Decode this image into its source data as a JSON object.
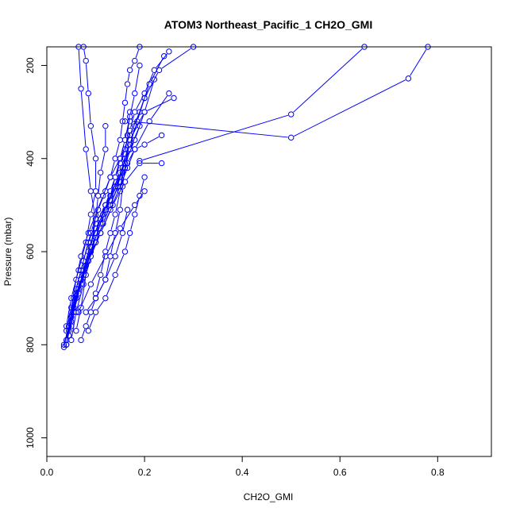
{
  "chart_data": {
    "type": "line",
    "title": "ATOM3 Northeast_Pacific_1 CH2O_GMI",
    "xlabel": "CH2O_GMI",
    "ylabel": "Pressure (mbar)",
    "xlim": [
      0,
      0.91
    ],
    "ylim": [
      1040,
      160
    ],
    "y_reversed": true,
    "x_ticks": [
      "0.0",
      "0.2",
      "0.4",
      "0.6",
      "0.8"
    ],
    "y_ticks": [
      "200",
      "400",
      "600",
      "800",
      "1000"
    ],
    "grid": false,
    "legend": "none",
    "colors": {
      "series": "#0000ff",
      "axes": "#000000",
      "background": "#ffffff"
    },
    "series": [
      {
        "x": [
          0.035,
          0.045,
          0.06,
          0.075,
          0.09,
          0.1,
          0.11,
          0.12,
          0.13,
          0.14,
          0.15,
          0.16,
          0.17,
          0.18,
          0.2,
          0.22,
          0.25
        ],
        "y": [
          805,
          760,
          700,
          650,
          600,
          560,
          530,
          500,
          470,
          440,
          410,
          380,
          340,
          300,
          260,
          210,
          170
        ]
      },
      {
        "x": [
          0.04,
          0.05,
          0.065,
          0.08,
          0.1,
          0.115,
          0.13,
          0.145,
          0.155,
          0.17,
          0.185,
          0.2,
          0.23,
          0.3
        ],
        "y": [
          800,
          750,
          690,
          630,
          580,
          540,
          500,
          460,
          420,
          370,
          320,
          270,
          210,
          160
        ]
      },
      {
        "x": [
          0.04,
          0.05,
          0.06,
          0.075,
          0.09,
          0.105,
          0.12,
          0.13,
          0.14,
          0.15,
          0.155,
          0.16,
          0.165,
          0.17,
          0.18,
          0.19
        ],
        "y": [
          790,
          740,
          680,
          620,
          560,
          510,
          470,
          440,
          400,
          360,
          320,
          280,
          240,
          210,
          190,
          160
        ]
      },
      {
        "x": [
          0.045,
          0.055,
          0.07,
          0.085,
          0.1,
          0.12,
          0.14,
          0.16,
          0.18,
          0.2,
          0.22
        ],
        "y": [
          780,
          730,
          660,
          600,
          550,
          510,
          460,
          410,
          360,
          300,
          230
        ]
      },
      {
        "x": [
          0.04,
          0.05,
          0.06,
          0.07,
          0.085,
          0.1,
          0.115,
          0.13,
          0.15,
          0.17,
          0.19,
          0.21,
          0.24
        ],
        "y": [
          770,
          720,
          660,
          610,
          560,
          520,
          480,
          440,
          400,
          350,
          300,
          240,
          180
        ]
      },
      {
        "x": [
          0.035,
          0.045,
          0.055,
          0.07,
          0.085,
          0.1,
          0.12,
          0.14,
          0.16,
          0.17,
          0.18,
          0.2
        ],
        "y": [
          800,
          760,
          700,
          640,
          580,
          540,
          500,
          460,
          420,
          380,
          330,
          270
        ]
      },
      {
        "x": [
          0.05,
          0.06,
          0.075,
          0.09,
          0.11,
          0.13,
          0.15,
          0.17,
          0.19
        ],
        "y": [
          760,
          700,
          640,
          580,
          530,
          480,
          430,
          380,
          330
        ]
      },
      {
        "x": [
          0.06,
          0.07,
          0.08,
          0.09,
          0.1,
          0.105,
          0.11,
          0.12,
          0.12
        ],
        "y": [
          770,
          720,
          650,
          590,
          530,
          480,
          430,
          380,
          330
        ]
      },
      {
        "x": [
          0.05,
          0.07,
          0.09,
          0.1,
          0.09,
          0.08,
          0.07,
          0.065
        ],
        "y": [
          730,
          660,
          590,
          530,
          470,
          380,
          250,
          160
        ]
      },
      {
        "x": [
          0.04,
          0.05,
          0.065,
          0.08,
          0.09,
          0.1,
          0.1,
          0.09,
          0.085,
          0.08,
          0.075
        ],
        "y": [
          760,
          700,
          640,
          580,
          520,
          470,
          400,
          330,
          260,
          190,
          160
        ]
      },
      {
        "x": [
          0.05,
          0.06,
          0.075,
          0.09,
          0.11,
          0.135,
          0.16,
          0.19,
          0.235
        ],
        "y": [
          790,
          730,
          670,
          610,
          560,
          500,
          450,
          410,
          410
        ]
      },
      {
        "x": [
          0.065,
          0.09,
          0.12,
          0.15,
          0.18,
          0.2
        ],
        "y": [
          730,
          670,
          610,
          550,
          500,
          470
        ]
      },
      {
        "x": [
          0.085,
          0.1,
          0.12,
          0.14,
          0.16,
          0.17,
          0.18,
          0.19,
          0.2
        ],
        "y": [
          770,
          730,
          700,
          650,
          600,
          560,
          520,
          480,
          440
        ]
      },
      {
        "x": [
          0.07,
          0.08,
          0.09,
          0.1,
          0.12,
          0.14,
          0.155,
          0.165
        ],
        "y": [
          790,
          760,
          730,
          700,
          660,
          610,
          560,
          510
        ]
      },
      {
        "x": [
          0.05,
          0.06,
          0.08,
          0.1,
          0.115,
          0.13,
          0.15,
          0.165,
          0.18,
          0.2,
          0.235
        ],
        "y": [
          740,
          690,
          630,
          580,
          540,
          500,
          450,
          410,
          380,
          370,
          350
        ]
      },
      {
        "x": [
          0.04,
          0.05,
          0.065,
          0.085,
          0.11,
          0.13,
          0.15,
          0.165,
          0.18,
          0.21,
          0.25
        ],
        "y": [
          800,
          740,
          680,
          620,
          560,
          510,
          460,
          420,
          380,
          320,
          260
        ]
      },
      {
        "x": [
          0.045,
          0.055,
          0.07,
          0.085,
          0.1,
          0.115,
          0.13,
          0.14,
          0.15,
          0.16,
          0.17,
          0.18,
          0.19
        ],
        "y": [
          770,
          720,
          670,
          620,
          570,
          520,
          480,
          440,
          400,
          360,
          310,
          260,
          200
        ]
      },
      {
        "x": [
          0.08,
          0.1,
          0.12,
          0.13,
          0.14,
          0.15,
          0.155,
          0.16
        ],
        "y": [
          730,
          700,
          660,
          610,
          560,
          510,
          460,
          420
        ]
      },
      {
        "x": [
          0.1,
          0.11,
          0.12,
          0.13,
          0.14,
          0.15,
          0.155,
          0.16,
          0.165,
          0.17
        ],
        "y": [
          690,
          650,
          600,
          560,
          520,
          470,
          430,
          390,
          350,
          300
        ]
      },
      {
        "x": [
          0.055,
          0.07,
          0.09,
          0.11,
          0.13,
          0.15,
          0.16,
          0.17,
          0.2,
          0.26
        ],
        "y": [
          720,
          660,
          600,
          540,
          490,
          440,
          400,
          360,
          300,
          270
        ]
      },
      {
        "x": [
          0.16,
          0.17,
          0.5,
          0.74,
          0.78
        ],
        "y": [
          320,
          320,
          355,
          228,
          160
        ]
      },
      {
        "x": [
          0.19,
          0.5,
          0.65
        ],
        "y": [
          405,
          305,
          160
        ]
      }
    ]
  }
}
